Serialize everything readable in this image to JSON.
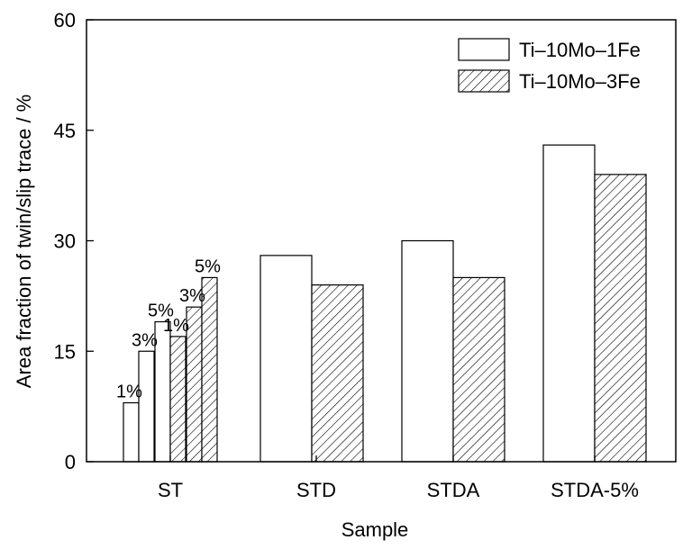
{
  "chart_data": {
    "type": "bar",
    "title": "",
    "xlabel": "Sample",
    "ylabel": "Area fraction of twin/slip trace / %",
    "ylim": [
      0,
      60
    ],
    "yticks": [
      "0",
      "15",
      "30",
      "45",
      "60"
    ],
    "grid": false,
    "legend_position": "top-right",
    "categories": [
      "ST",
      "STD",
      "STDA",
      "STDA-5%"
    ],
    "series": [
      {
        "name": "Ti–10Mo–1Fe",
        "pattern": "open",
        "color": "#ffffff"
      },
      {
        "name": "Ti–10Mo–3Fe",
        "pattern": "hatched",
        "color": "#000000"
      }
    ],
    "bars": [
      {
        "category": "ST",
        "series": "Ti–10Mo–1Fe",
        "value": 8,
        "label": "1%"
      },
      {
        "category": "ST",
        "series": "Ti–10Mo–1Fe",
        "value": 15,
        "label": "3%"
      },
      {
        "category": "ST",
        "series": "Ti–10Mo–1Fe",
        "value": 19,
        "label": "5%"
      },
      {
        "category": "ST",
        "series": "Ti–10Mo–3Fe",
        "value": 17,
        "label": "1%"
      },
      {
        "category": "ST",
        "series": "Ti–10Mo–3Fe",
        "value": 21,
        "label": "3%"
      },
      {
        "category": "ST",
        "series": "Ti–10Mo–3Fe",
        "value": 25,
        "label": "5%"
      },
      {
        "category": "STD",
        "series": "Ti–10Mo–1Fe",
        "value": 28,
        "label": ""
      },
      {
        "category": "STD",
        "series": "Ti–10Mo–3Fe",
        "value": 24,
        "label": ""
      },
      {
        "category": "STDA",
        "series": "Ti–10Mo–1Fe",
        "value": 30,
        "label": ""
      },
      {
        "category": "STDA",
        "series": "Ti–10Mo–3Fe",
        "value": 25,
        "label": ""
      },
      {
        "category": "STDA-5%",
        "series": "Ti–10Mo–1Fe",
        "value": 43,
        "label": ""
      },
      {
        "category": "STDA-5%",
        "series": "Ti–10Mo–3Fe",
        "value": 39,
        "label": ""
      }
    ]
  }
}
